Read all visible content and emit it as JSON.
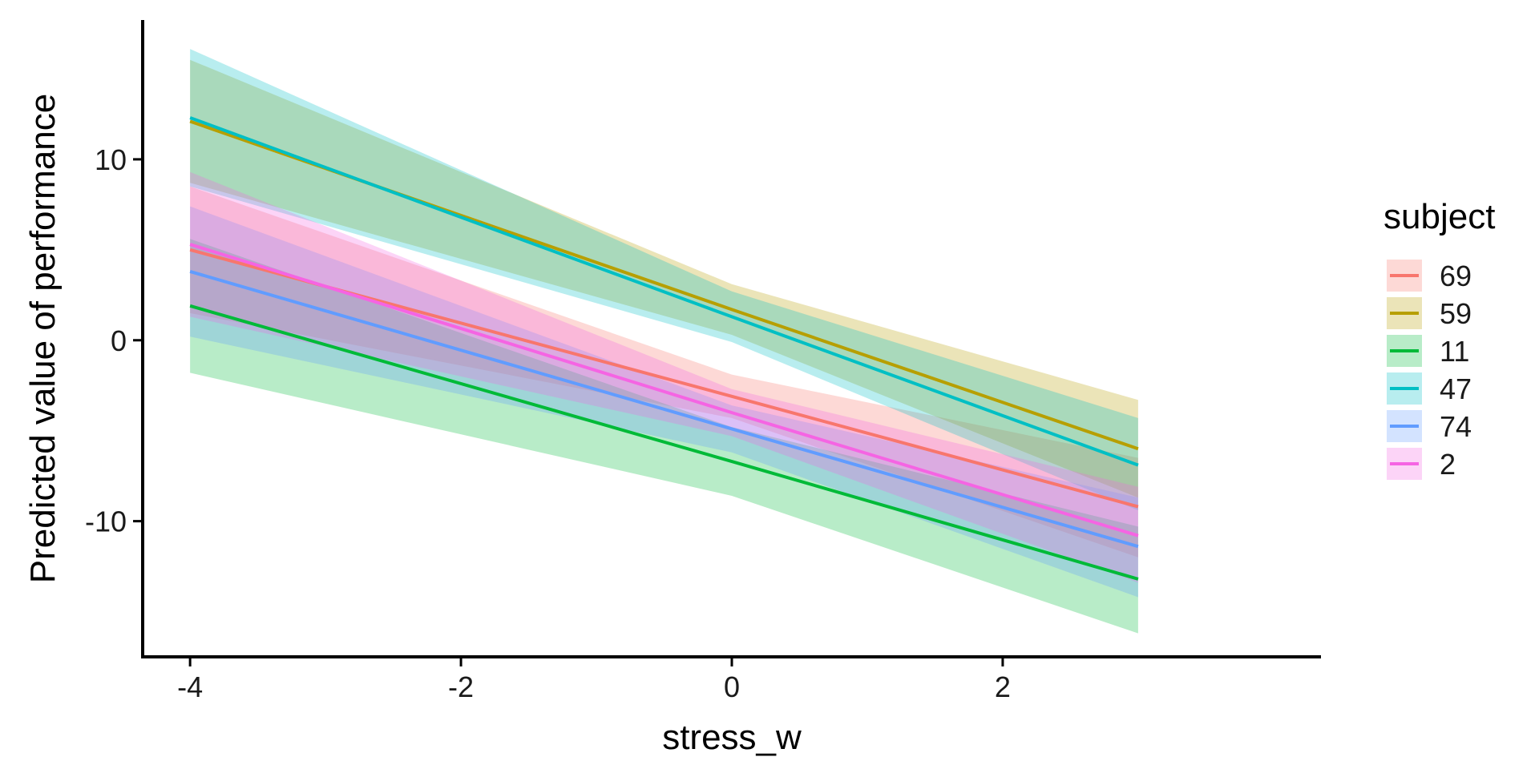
{
  "chart_data": {
    "type": "line",
    "title": "",
    "xlabel": "stress_w",
    "ylabel": "Predicted value of performance",
    "xlim": [
      -4.35,
      4.35
    ],
    "ylim": [
      -17.5,
      17.7
    ],
    "xticks": [
      -4,
      -2,
      0,
      2
    ],
    "xtick_labels": [
      "-4",
      "-2",
      "0",
      "2"
    ],
    "yticks": [
      -10,
      0,
      10
    ],
    "ytick_labels": [
      "-10",
      "0",
      "10"
    ],
    "grid": false,
    "legend_title": "subject",
    "legend_position": "right",
    "x": [
      -4,
      0,
      3
    ],
    "series": [
      {
        "name": "69",
        "color": "#F8766D",
        "values": [
          5.0,
          -3.1,
          -9.2
        ],
        "lower": [
          1.5,
          -4.3,
          -12.0
        ],
        "upper": [
          8.5,
          -1.9,
          -6.5
        ]
      },
      {
        "name": "59",
        "color": "#B79F00",
        "values": [
          12.1,
          1.7,
          -6.0
        ],
        "lower": [
          8.7,
          0.3,
          -8.7
        ],
        "upper": [
          15.5,
          3.1,
          -3.3
        ]
      },
      {
        "name": "11",
        "color": "#00BA38",
        "values": [
          1.9,
          -6.7,
          -13.2
        ],
        "lower": [
          -1.8,
          -8.6,
          -16.2
        ],
        "upper": [
          5.6,
          -4.8,
          -10.3
        ]
      },
      {
        "name": "47",
        "color": "#00BFC4",
        "values": [
          12.3,
          1.3,
          -6.9
        ],
        "lower": [
          8.5,
          -0.1,
          -9.4
        ],
        "upper": [
          16.1,
          2.7,
          -4.3
        ]
      },
      {
        "name": "74",
        "color": "#619CFF",
        "values": [
          3.8,
          -4.9,
          -11.4
        ],
        "lower": [
          0.2,
          -6.2,
          -14.2
        ],
        "upper": [
          7.4,
          -3.6,
          -8.7
        ]
      },
      {
        "name": "2",
        "color": "#F564E3",
        "values": [
          5.3,
          -4.0,
          -10.8
        ],
        "lower": [
          1.3,
          -5.3,
          -13.4
        ],
        "upper": [
          9.3,
          -2.7,
          -8.1
        ]
      }
    ]
  }
}
